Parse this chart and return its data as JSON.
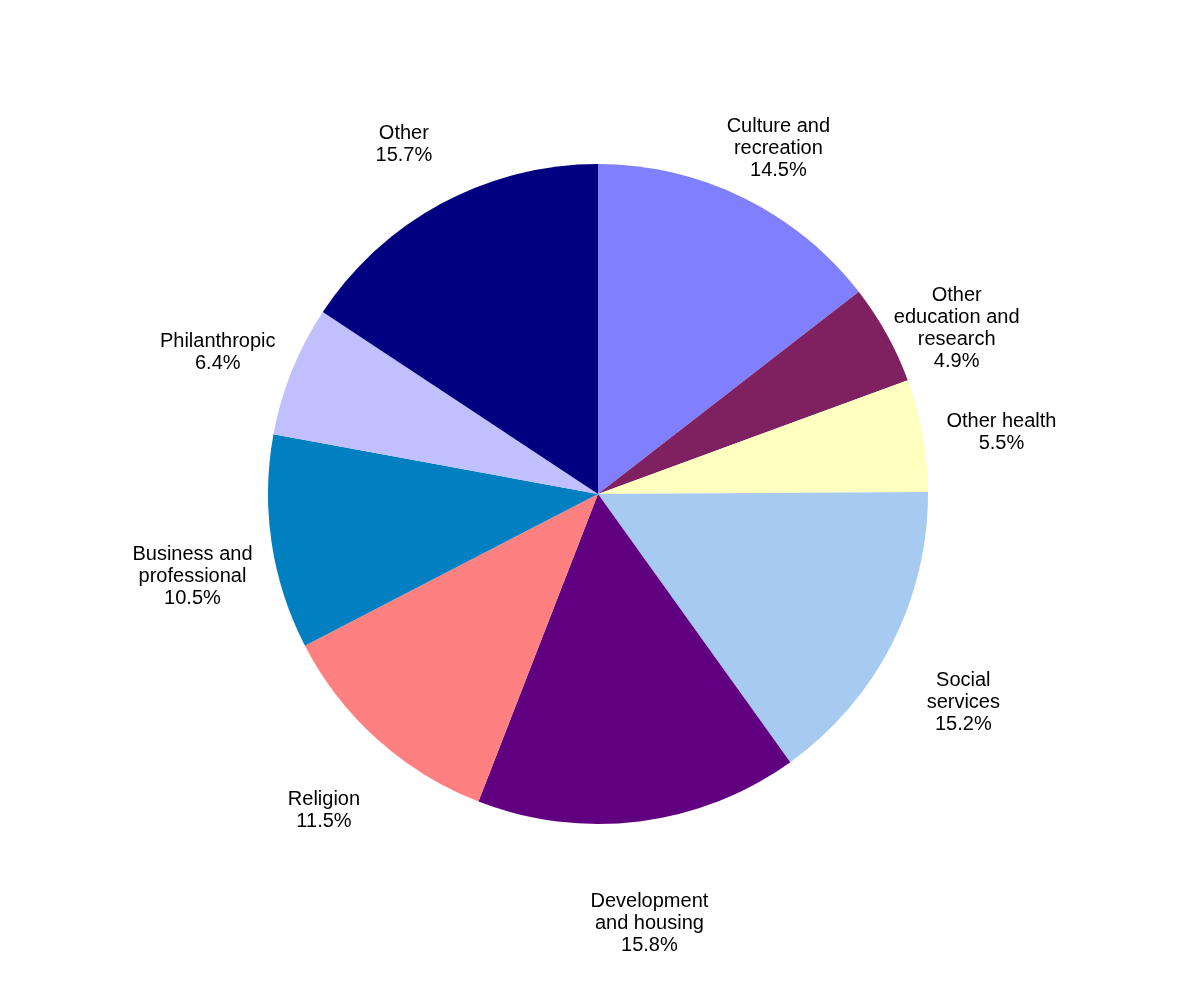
{
  "chart_data": {
    "type": "pie",
    "categories": [
      "Culture and recreation",
      "Other education and research",
      "Other health",
      "Social services",
      "Development and housing",
      "Religion",
      "Business and professional",
      "Philanthropic",
      "Other"
    ],
    "values": [
      14.5,
      4.9,
      5.5,
      15.2,
      15.8,
      11.5,
      10.5,
      6.4,
      15.7
    ],
    "colors": [
      "#8080ff",
      "#7f2060",
      "#ffffc0",
      "#a6caf0",
      "#600080",
      "#ff8080",
      "#0080c0",
      "#c0c0ff",
      "#000080"
    ],
    "value_labels": [
      "14.5%",
      "4.9%",
      "5.5%",
      "15.2%",
      "15.8%",
      "11.5%",
      "10.5%",
      "6.4%",
      "15.7%"
    ]
  }
}
